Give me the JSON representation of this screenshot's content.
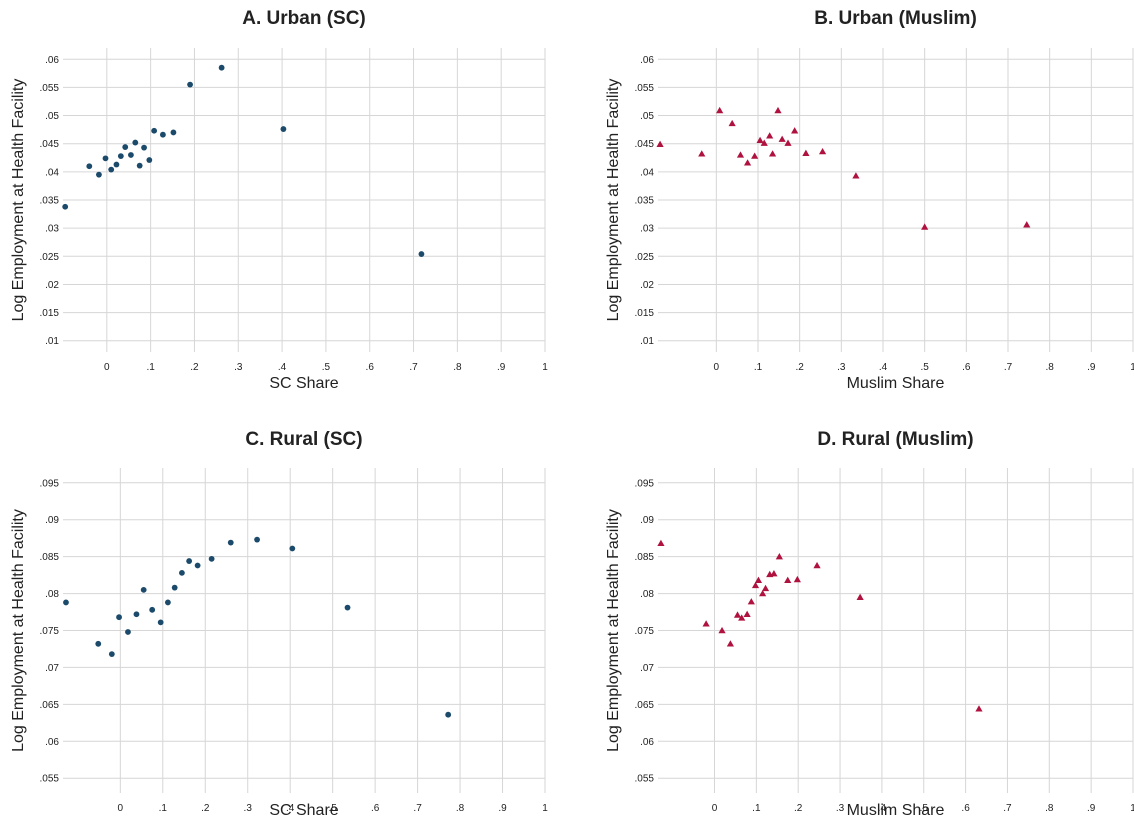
{
  "colors": {
    "sc": "#1b4a6b",
    "muslim": "#b0123f",
    "grid": "#d6d6d6"
  },
  "chart_data": [
    {
      "type": "scatter",
      "title": "A. Urban (SC)",
      "xlabel": "SC Share",
      "ylabel": "Log Employment at Health Facility",
      "xticks": [
        0,
        0.1,
        0.2,
        0.3,
        0.4,
        0.5,
        0.6,
        0.7,
        0.8,
        0.9,
        1
      ],
      "xtick_labels": [
        "0",
        ".1",
        ".2",
        ".3",
        ".4",
        ".5",
        ".6",
        ".7",
        ".8",
        ".9",
        "1"
      ],
      "yticks": [
        0.01,
        0.015,
        0.02,
        0.025,
        0.03,
        0.035,
        0.04,
        0.045,
        0.05,
        0.055,
        0.06
      ],
      "ytick_labels": [
        ".01",
        ".015",
        ".02",
        ".025",
        ".03",
        ".035",
        ".04",
        ".045",
        ".05",
        ".055",
        ".06"
      ],
      "xlim": [
        -0.1,
        1
      ],
      "ylim": [
        0.008,
        0.062
      ],
      "marker": "circle",
      "color_key": "sc",
      "points": [
        [
          -0.095,
          0.0338
        ],
        [
          -0.04,
          0.041
        ],
        [
          -0.018,
          0.0395
        ],
        [
          -0.003,
          0.0424
        ],
        [
          0.01,
          0.0404
        ],
        [
          0.022,
          0.0413
        ],
        [
          0.032,
          0.0428
        ],
        [
          0.042,
          0.0444
        ],
        [
          0.055,
          0.043
        ],
        [
          0.065,
          0.0452
        ],
        [
          0.075,
          0.0411
        ],
        [
          0.085,
          0.0443
        ],
        [
          0.097,
          0.0421
        ],
        [
          0.108,
          0.0473
        ],
        [
          0.128,
          0.0466
        ],
        [
          0.152,
          0.047
        ],
        [
          0.19,
          0.0555
        ],
        [
          0.262,
          0.0585
        ],
        [
          0.403,
          0.0476
        ],
        [
          0.718,
          0.0254
        ]
      ]
    },
    {
      "type": "scatter",
      "title": "B. Urban (Muslim)",
      "xlabel": "Muslim Share",
      "ylabel": "Log Employment at Health Facility",
      "xticks": [
        0,
        0.1,
        0.2,
        0.3,
        0.4,
        0.5,
        0.6,
        0.7,
        0.8,
        0.9,
        1
      ],
      "xtick_labels": [
        "0",
        ".1",
        ".2",
        ".3",
        ".4",
        ".5",
        ".6",
        ".7",
        ".8",
        ".9",
        "1"
      ],
      "yticks": [
        0.01,
        0.015,
        0.02,
        0.025,
        0.03,
        0.035,
        0.04,
        0.045,
        0.05,
        0.055,
        0.06
      ],
      "ytick_labels": [
        ".01",
        ".015",
        ".02",
        ".025",
        ".03",
        ".035",
        ".04",
        ".045",
        ".05",
        ".055",
        ".06"
      ],
      "xlim": [
        -0.14,
        1
      ],
      "ylim": [
        0.008,
        0.062
      ],
      "marker": "triangle",
      "color_key": "muslim",
      "points": [
        [
          -0.135,
          0.0449
        ],
        [
          -0.035,
          0.0432
        ],
        [
          0.008,
          0.0509
        ],
        [
          0.038,
          0.0486
        ],
        [
          0.058,
          0.043
        ],
        [
          0.075,
          0.0416
        ],
        [
          0.092,
          0.0428
        ],
        [
          0.105,
          0.0456
        ],
        [
          0.115,
          0.0451
        ],
        [
          0.128,
          0.0464
        ],
        [
          0.135,
          0.0432
        ],
        [
          0.148,
          0.0509
        ],
        [
          0.158,
          0.0458
        ],
        [
          0.172,
          0.0451
        ],
        [
          0.188,
          0.0473
        ],
        [
          0.215,
          0.0433
        ],
        [
          0.255,
          0.0436
        ],
        [
          0.335,
          0.0393
        ],
        [
          0.5,
          0.0302
        ],
        [
          0.745,
          0.0306
        ]
      ]
    },
    {
      "type": "scatter",
      "title": "C. Rural (SC)",
      "xlabel": "SC Share",
      "ylabel": "Log Employment at Health Facility",
      "xticks": [
        0,
        0.1,
        0.2,
        0.3,
        0.4,
        0.5,
        0.6,
        0.7,
        0.8,
        0.9,
        1
      ],
      "xtick_labels": [
        "0",
        ".1",
        ".2",
        ".3",
        ".4",
        ".5",
        ".6",
        ".7",
        ".8",
        ".9",
        "1"
      ],
      "yticks": [
        0.055,
        0.06,
        0.065,
        0.07,
        0.075,
        0.08,
        0.085,
        0.09,
        0.095
      ],
      "ytick_labels": [
        ".055",
        ".06",
        ".065",
        ".07",
        ".075",
        ".08",
        ".085",
        ".09",
        ".095"
      ],
      "xlim": [
        -0.135,
        1
      ],
      "ylim": [
        0.053,
        0.097
      ],
      "marker": "circle",
      "color_key": "sc",
      "points": [
        [
          -0.128,
          0.0788
        ],
        [
          -0.052,
          0.0732
        ],
        [
          -0.02,
          0.0718
        ],
        [
          -0.003,
          0.0768
        ],
        [
          0.018,
          0.0748
        ],
        [
          0.038,
          0.0772
        ],
        [
          0.055,
          0.0805
        ],
        [
          0.075,
          0.0778
        ],
        [
          0.095,
          0.0761
        ],
        [
          0.112,
          0.0788
        ],
        [
          0.128,
          0.0808
        ],
        [
          0.145,
          0.0828
        ],
        [
          0.162,
          0.0844
        ],
        [
          0.182,
          0.0838
        ],
        [
          0.215,
          0.0847
        ],
        [
          0.26,
          0.0869
        ],
        [
          0.322,
          0.0873
        ],
        [
          0.405,
          0.0861
        ],
        [
          0.535,
          0.0781
        ],
        [
          0.772,
          0.0636
        ]
      ]
    },
    {
      "type": "scatter",
      "title": "D. Rural (Muslim)",
      "xlabel": "Muslim Share",
      "ylabel": "Log Employment at Health Facility",
      "xticks": [
        0,
        0.1,
        0.2,
        0.3,
        0.4,
        0.5,
        0.6,
        0.7,
        0.8,
        0.9,
        1
      ],
      "xtick_labels": [
        "0",
        ".1",
        ".2",
        ".3",
        ".4",
        ".5",
        ".6",
        ".7",
        ".8",
        ".9",
        "1"
      ],
      "yticks": [
        0.055,
        0.06,
        0.065,
        0.07,
        0.075,
        0.08,
        0.085,
        0.09,
        0.095
      ],
      "ytick_labels": [
        ".055",
        ".06",
        ".065",
        ".07",
        ".075",
        ".08",
        ".085",
        ".09",
        ".095"
      ],
      "xlim": [
        -0.135,
        1
      ],
      "ylim": [
        0.053,
        0.097
      ],
      "marker": "triangle",
      "color_key": "muslim",
      "points": [
        [
          -0.128,
          0.0868
        ],
        [
          -0.02,
          0.0759
        ],
        [
          0.018,
          0.075
        ],
        [
          0.038,
          0.0732
        ],
        [
          0.055,
          0.0771
        ],
        [
          0.065,
          0.0767
        ],
        [
          0.078,
          0.0772
        ],
        [
          0.088,
          0.0789
        ],
        [
          0.098,
          0.0811
        ],
        [
          0.105,
          0.0818
        ],
        [
          0.115,
          0.08
        ],
        [
          0.122,
          0.0807
        ],
        [
          0.132,
          0.0826
        ],
        [
          0.142,
          0.0827
        ],
        [
          0.155,
          0.085
        ],
        [
          0.175,
          0.0818
        ],
        [
          0.198,
          0.0819
        ],
        [
          0.245,
          0.0838
        ],
        [
          0.348,
          0.0795
        ],
        [
          0.632,
          0.0644
        ]
      ]
    }
  ]
}
